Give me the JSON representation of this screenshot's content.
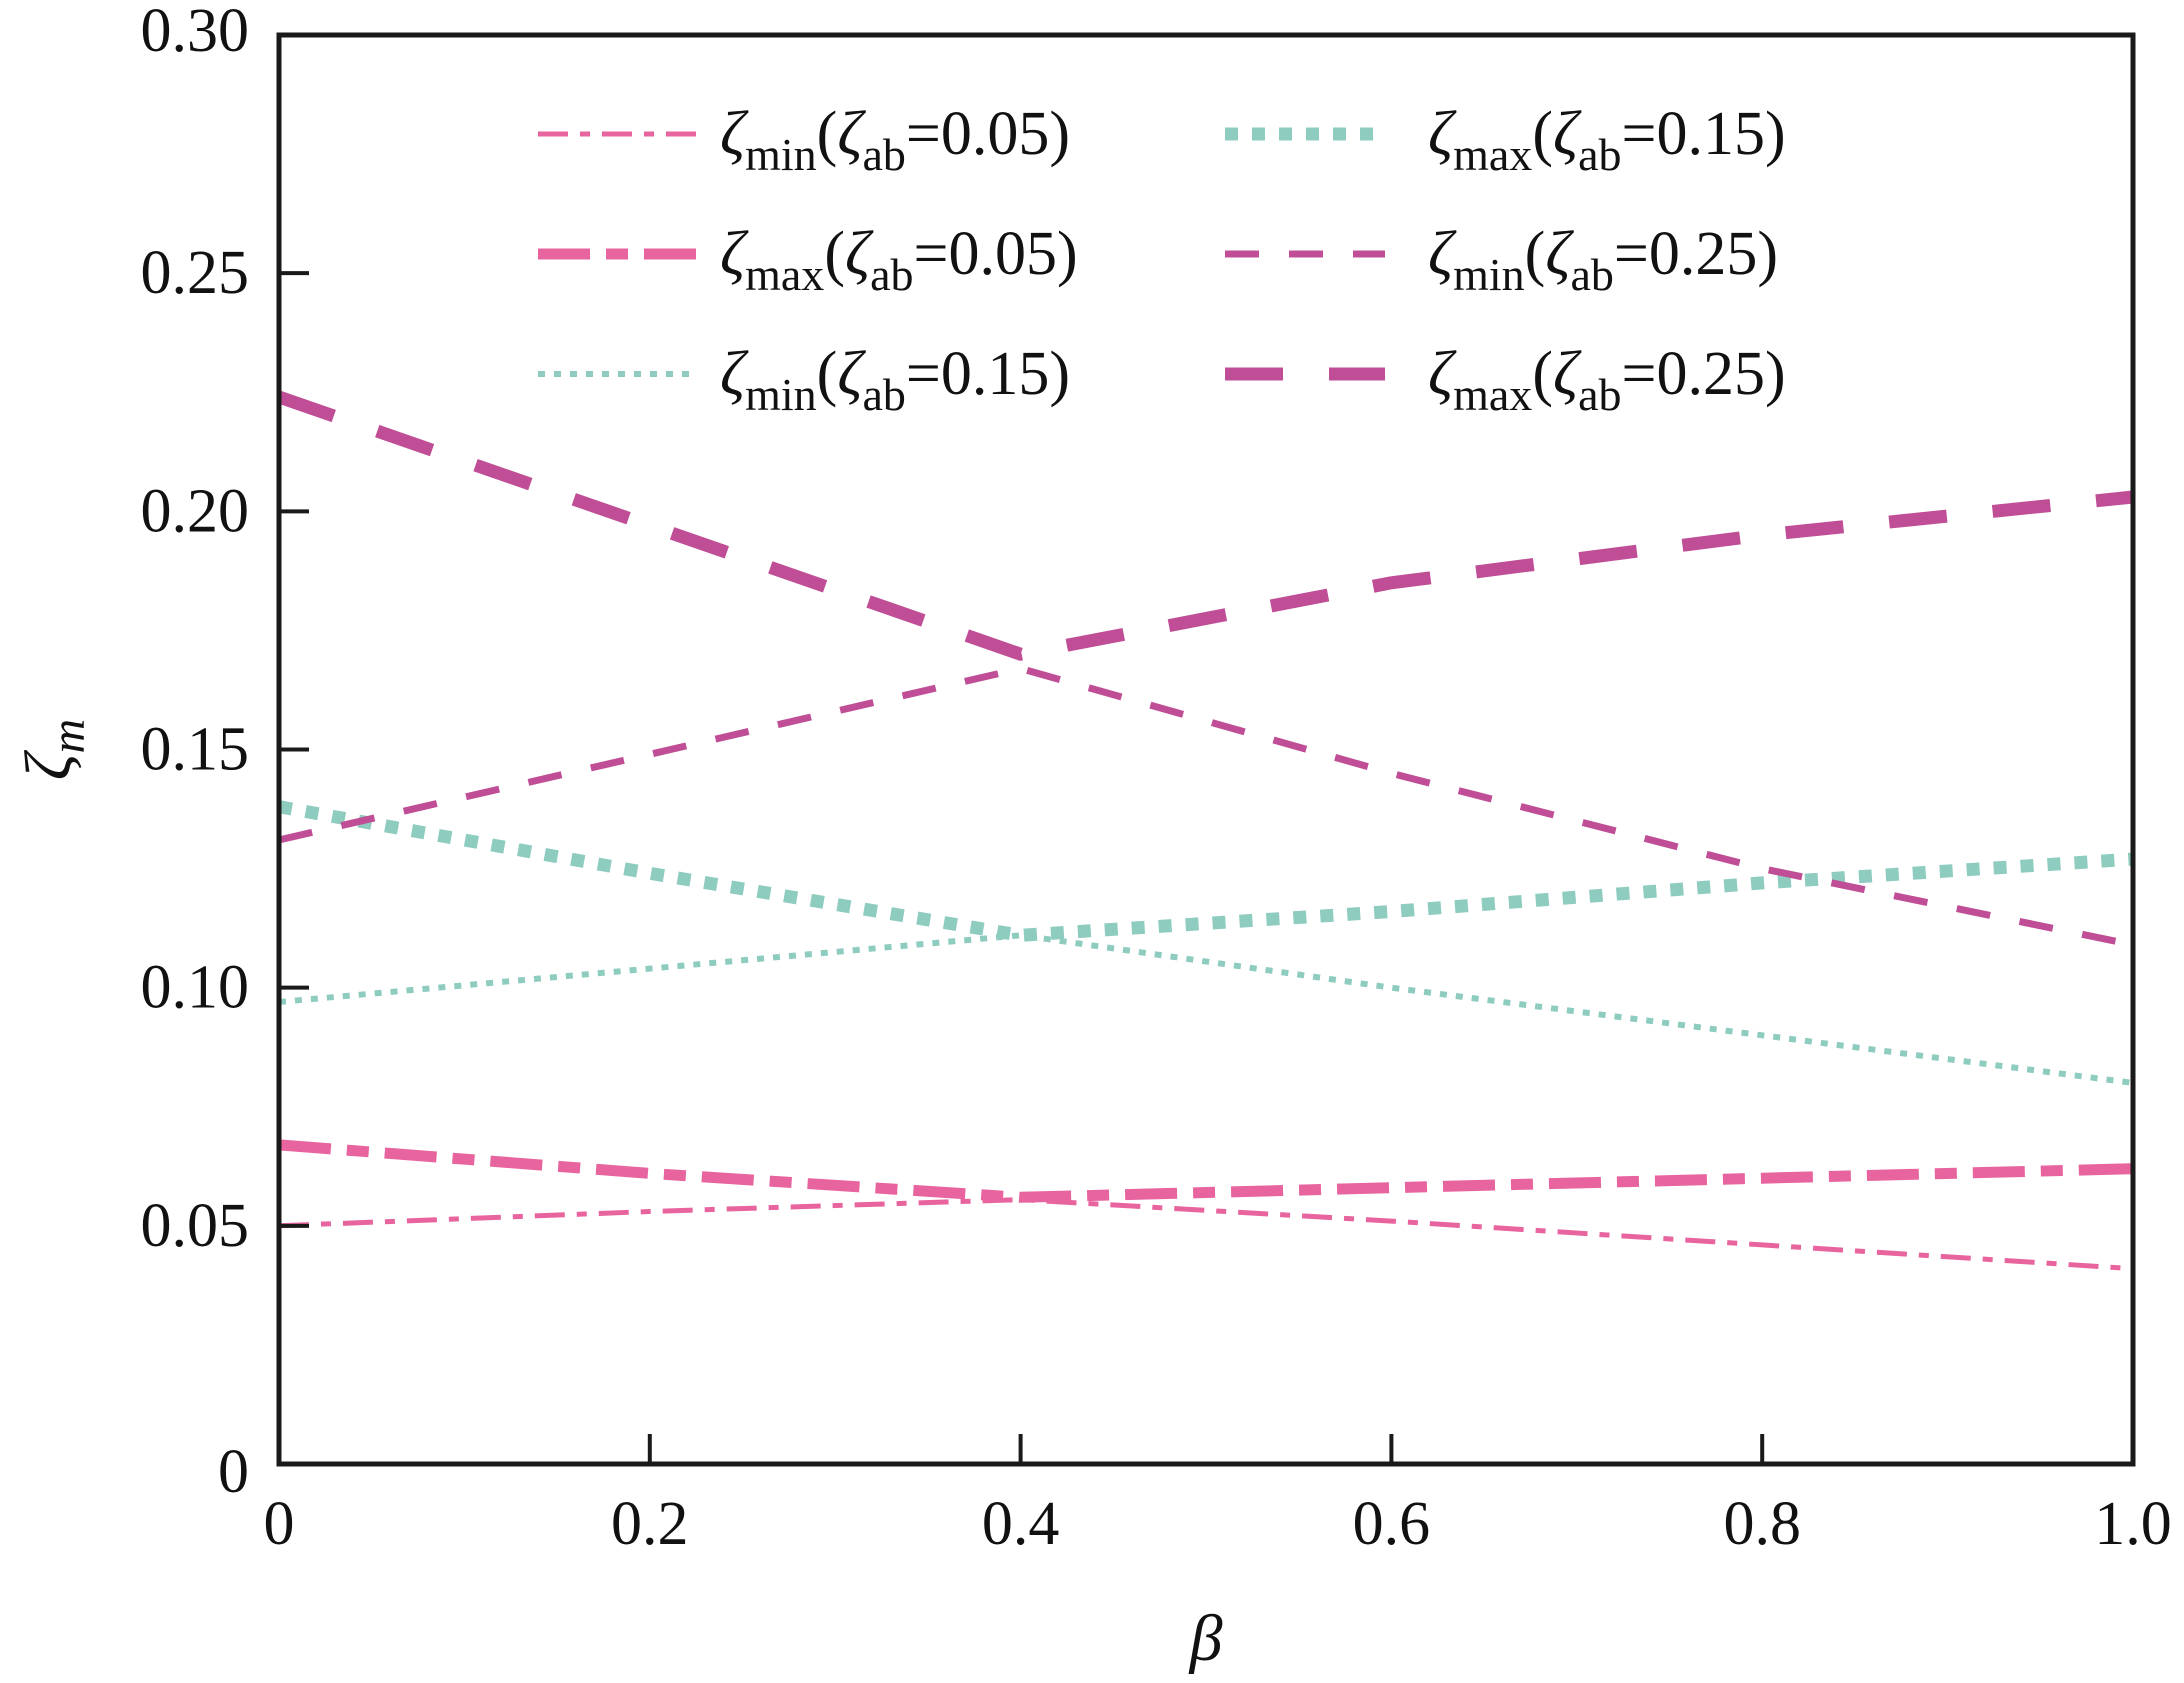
{
  "chart_data": {
    "type": "line",
    "title": "",
    "xlabel": "β",
    "ylabel": "ζ",
    "ylabel_subscript": "m",
    "xlim": [
      0,
      1.0
    ],
    "ylim": [
      0,
      0.3
    ],
    "grid": false,
    "x_ticks": [
      0,
      0.2,
      0.4,
      0.6,
      0.8,
      1.0
    ],
    "x_tick_labels": [
      "0",
      "0.2",
      "0.4",
      "0.6",
      "0.8",
      "1.0"
    ],
    "y_ticks": [
      0,
      0.05,
      0.1,
      0.15,
      0.2,
      0.25,
      0.3
    ],
    "y_tick_labels": [
      "0",
      "0.05",
      "0.10",
      "0.15",
      "0.20",
      "0.25",
      "0.30"
    ],
    "legend_placement": "top-center",
    "x": [
      0,
      0.2,
      0.4,
      0.6,
      0.8,
      1.0
    ],
    "series": [
      {
        "name": "ζmin(ζab=0.05)",
        "sym": "ζ",
        "sub": "min",
        "inner": "ζ",
        "inner_sub": "ab",
        "eq": "=0.05)",
        "color": "#E8649E",
        "style": "dashdot-thin",
        "values": [
          0.05,
          0.053,
          0.0555,
          0.051,
          0.046,
          0.041
        ]
      },
      {
        "name": "ζmax(ζab=0.05)",
        "sym": "ζ",
        "sub": "max",
        "inner": "ζ",
        "inner_sub": "ab",
        "eq": "=0.05)",
        "color": "#E8649E",
        "style": "dashdot-thick",
        "values": [
          0.067,
          0.061,
          0.056,
          0.058,
          0.06,
          0.062
        ]
      },
      {
        "name": "ζmin(ζab=0.15)",
        "sym": "ζ",
        "sub": "min",
        "inner": "ζ",
        "inner_sub": "ab",
        "eq": "=0.15)",
        "color": "#8ECCC0",
        "style": "dot-thin",
        "values": [
          0.097,
          0.104,
          0.111,
          0.1,
          0.09,
          0.08
        ]
      },
      {
        "name": "ζmax(ζab=0.15)",
        "sym": "ζ",
        "sub": "max",
        "inner": "ζ",
        "inner_sub": "ab",
        "eq": "=0.15)",
        "color": "#8ECCC0",
        "style": "dot-thick",
        "values": [
          0.138,
          0.124,
          0.111,
          0.116,
          0.122,
          0.127
        ]
      },
      {
        "name": "ζmin(ζab=0.25)",
        "sym": "ζ",
        "sub": "min",
        "inner": "ζ",
        "inner_sub": "ab",
        "eq": "=0.25)",
        "color": "#C04E96",
        "style": "dash-thin",
        "values": [
          0.131,
          0.149,
          0.167,
          0.145,
          0.125,
          0.109
        ]
      },
      {
        "name": "ζmax(ζab=0.25)",
        "sym": "ζ",
        "sub": "max",
        "inner": "ζ",
        "inner_sub": "ab",
        "eq": "=0.25)",
        "color": "#C04E96",
        "style": "dash-thick",
        "values": [
          0.224,
          0.197,
          0.17,
          0.185,
          0.195,
          0.203
        ]
      }
    ]
  }
}
